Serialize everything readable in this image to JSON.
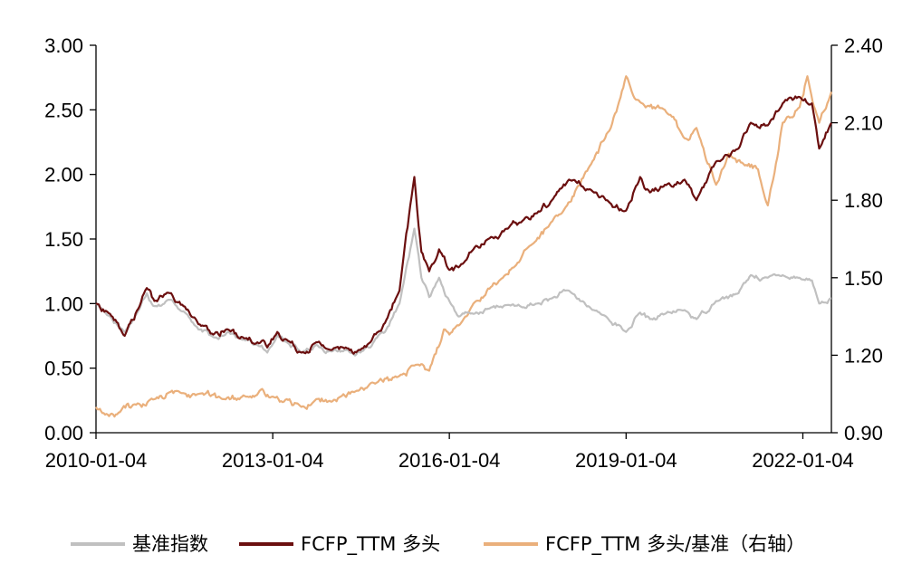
{
  "chart_data": {
    "type": "line",
    "title": "",
    "xlabel": "",
    "ylabel": "",
    "x_start": "2010-01-04",
    "x_end": "2022-06-30",
    "x_ticks": [
      "2010-01-04",
      "2013-01-04",
      "2016-01-04",
      "2019-01-04",
      "2022-01-04"
    ],
    "y_left": {
      "lim": [
        0,
        3
      ],
      "ticks": [
        "0.00",
        "0.50",
        "1.00",
        "1.50",
        "2.00",
        "2.50",
        "3.00"
      ]
    },
    "y_right": {
      "lim": [
        0.9,
        2.4
      ],
      "ticks": [
        "0.90",
        "1.20",
        "1.50",
        "1.80",
        "2.10",
        "2.40"
      ]
    },
    "grid": false,
    "legend_position": "bottom",
    "series": [
      {
        "name": "基准指数",
        "axis": "left",
        "color": "#c0c0c0",
        "points": [
          [
            "2010-01-04",
            1.0
          ],
          [
            "2010-04-01",
            0.9
          ],
          [
            "2010-07-01",
            0.78
          ],
          [
            "2010-10-01",
            0.96
          ],
          [
            "2010-11-15",
            1.08
          ],
          [
            "2011-01-01",
            0.98
          ],
          [
            "2011-04-15",
            1.03
          ],
          [
            "2011-07-01",
            0.94
          ],
          [
            "2011-10-01",
            0.8
          ],
          [
            "2012-01-01",
            0.74
          ],
          [
            "2012-04-01",
            0.78
          ],
          [
            "2012-07-01",
            0.72
          ],
          [
            "2012-10-01",
            0.68
          ],
          [
            "2012-12-01",
            0.62
          ],
          [
            "2013-02-01",
            0.76
          ],
          [
            "2013-04-01",
            0.7
          ],
          [
            "2013-07-01",
            0.62
          ],
          [
            "2013-10-01",
            0.68
          ],
          [
            "2014-01-01",
            0.63
          ],
          [
            "2014-04-01",
            0.64
          ],
          [
            "2014-07-01",
            0.62
          ],
          [
            "2014-09-01",
            0.66
          ],
          [
            "2014-12-01",
            0.78
          ],
          [
            "2015-03-01",
            1.0
          ],
          [
            "2015-06-01",
            1.58
          ],
          [
            "2015-07-15",
            1.2
          ],
          [
            "2015-09-01",
            1.05
          ],
          [
            "2015-11-01",
            1.2
          ],
          [
            "2016-01-04",
            1.02
          ],
          [
            "2016-03-01",
            0.9
          ],
          [
            "2016-06-01",
            0.92
          ],
          [
            "2016-09-01",
            0.96
          ],
          [
            "2017-01-01",
            0.99
          ],
          [
            "2017-04-01",
            0.97
          ],
          [
            "2017-07-01",
            1.0
          ],
          [
            "2017-10-01",
            1.04
          ],
          [
            "2018-01-15",
            1.1
          ],
          [
            "2018-06-01",
            0.96
          ],
          [
            "2018-09-01",
            0.9
          ],
          [
            "2019-01-04",
            0.78
          ],
          [
            "2019-04-01",
            0.93
          ],
          [
            "2019-06-01",
            0.88
          ],
          [
            "2019-09-01",
            0.92
          ],
          [
            "2020-01-01",
            0.95
          ],
          [
            "2020-03-15",
            0.88
          ],
          [
            "2020-07-15",
            1.02
          ],
          [
            "2020-12-01",
            1.08
          ],
          [
            "2021-02-15",
            1.22
          ],
          [
            "2021-06-01",
            1.2
          ],
          [
            "2021-09-01",
            1.22
          ],
          [
            "2021-12-15",
            1.2
          ],
          [
            "2022-03-01",
            1.18
          ],
          [
            "2022-04-15",
            1.0
          ],
          [
            "2022-06-30",
            1.04
          ]
        ]
      },
      {
        "name": "FCFP_TTM 多头",
        "axis": "left",
        "color": "#6b0f0f",
        "points": [
          [
            "2010-01-04",
            1.0
          ],
          [
            "2010-04-01",
            0.92
          ],
          [
            "2010-07-01",
            0.75
          ],
          [
            "2010-10-01",
            0.98
          ],
          [
            "2010-11-15",
            1.12
          ],
          [
            "2011-01-01",
            1.02
          ],
          [
            "2011-04-15",
            1.08
          ],
          [
            "2011-07-01",
            0.98
          ],
          [
            "2011-10-01",
            0.84
          ],
          [
            "2012-01-01",
            0.76
          ],
          [
            "2012-04-01",
            0.8
          ],
          [
            "2012-07-01",
            0.74
          ],
          [
            "2012-10-01",
            0.7
          ],
          [
            "2012-12-01",
            0.66
          ],
          [
            "2013-02-01",
            0.78
          ],
          [
            "2013-04-01",
            0.72
          ],
          [
            "2013-07-01",
            0.62
          ],
          [
            "2013-10-01",
            0.7
          ],
          [
            "2014-01-01",
            0.64
          ],
          [
            "2014-04-01",
            0.66
          ],
          [
            "2014-07-01",
            0.64
          ],
          [
            "2014-09-01",
            0.7
          ],
          [
            "2014-12-01",
            0.85
          ],
          [
            "2015-03-01",
            1.1
          ],
          [
            "2015-06-01",
            1.98
          ],
          [
            "2015-07-15",
            1.4
          ],
          [
            "2015-09-01",
            1.25
          ],
          [
            "2015-11-01",
            1.42
          ],
          [
            "2016-01-04",
            1.26
          ],
          [
            "2016-03-01",
            1.28
          ],
          [
            "2016-06-01",
            1.42
          ],
          [
            "2016-09-01",
            1.5
          ],
          [
            "2017-01-01",
            1.58
          ],
          [
            "2017-04-01",
            1.64
          ],
          [
            "2017-07-01",
            1.7
          ],
          [
            "2017-10-01",
            1.8
          ],
          [
            "2018-01-15",
            1.96
          ],
          [
            "2018-06-01",
            1.88
          ],
          [
            "2018-09-01",
            1.8
          ],
          [
            "2019-01-04",
            1.72
          ],
          [
            "2019-04-01",
            1.98
          ],
          [
            "2019-06-01",
            1.86
          ],
          [
            "2019-09-01",
            1.92
          ],
          [
            "2020-01-01",
            1.96
          ],
          [
            "2020-03-15",
            1.8
          ],
          [
            "2020-07-15",
            2.1
          ],
          [
            "2020-12-01",
            2.2
          ],
          [
            "2021-02-15",
            2.4
          ],
          [
            "2021-06-01",
            2.38
          ],
          [
            "2021-09-01",
            2.55
          ],
          [
            "2021-12-15",
            2.6
          ],
          [
            "2022-03-01",
            2.55
          ],
          [
            "2022-04-15",
            2.2
          ],
          [
            "2022-06-30",
            2.4
          ]
        ]
      },
      {
        "name": "FCFP_TTM 多头/基准（右轴）",
        "axis": "right",
        "color": "#eab07c",
        "points": [
          [
            "2010-01-04",
            1.0
          ],
          [
            "2010-03-01",
            0.97
          ],
          [
            "2010-06-01",
            0.98
          ],
          [
            "2010-09-01",
            1.01
          ],
          [
            "2011-01-01",
            1.03
          ],
          [
            "2011-06-01",
            1.06
          ],
          [
            "2011-10-01",
            1.05
          ],
          [
            "2012-03-01",
            1.03
          ],
          [
            "2012-08-01",
            1.04
          ],
          [
            "2013-01-04",
            1.04
          ],
          [
            "2013-04-01",
            1.03
          ],
          [
            "2013-07-01",
            1.0
          ],
          [
            "2013-10-01",
            1.03
          ],
          [
            "2014-01-01",
            1.02
          ],
          [
            "2014-06-01",
            1.06
          ],
          [
            "2014-10-01",
            1.09
          ],
          [
            "2015-03-01",
            1.12
          ],
          [
            "2015-06-01",
            1.16
          ],
          [
            "2015-09-01",
            1.14
          ],
          [
            "2015-12-01",
            1.3
          ],
          [
            "2016-01-04",
            1.28
          ],
          [
            "2016-06-01",
            1.4
          ],
          [
            "2016-12-01",
            1.5
          ],
          [
            "2017-06-01",
            1.63
          ],
          [
            "2017-12-01",
            1.75
          ],
          [
            "2018-06-01",
            1.94
          ],
          [
            "2018-10-01",
            2.08
          ],
          [
            "2019-01-04",
            2.28
          ],
          [
            "2019-04-01",
            2.18
          ],
          [
            "2019-09-01",
            2.15
          ],
          [
            "2020-01-01",
            2.04
          ],
          [
            "2020-03-15",
            2.08
          ],
          [
            "2020-07-15",
            1.86
          ],
          [
            "2020-10-01",
            1.98
          ],
          [
            "2021-01-01",
            1.94
          ],
          [
            "2021-04-01",
            1.92
          ],
          [
            "2021-06-01",
            1.78
          ],
          [
            "2021-09-01",
            2.1
          ],
          [
            "2021-12-15",
            2.16
          ],
          [
            "2022-02-01",
            2.28
          ],
          [
            "2022-04-15",
            2.1
          ],
          [
            "2022-06-30",
            2.22
          ]
        ]
      }
    ]
  }
}
